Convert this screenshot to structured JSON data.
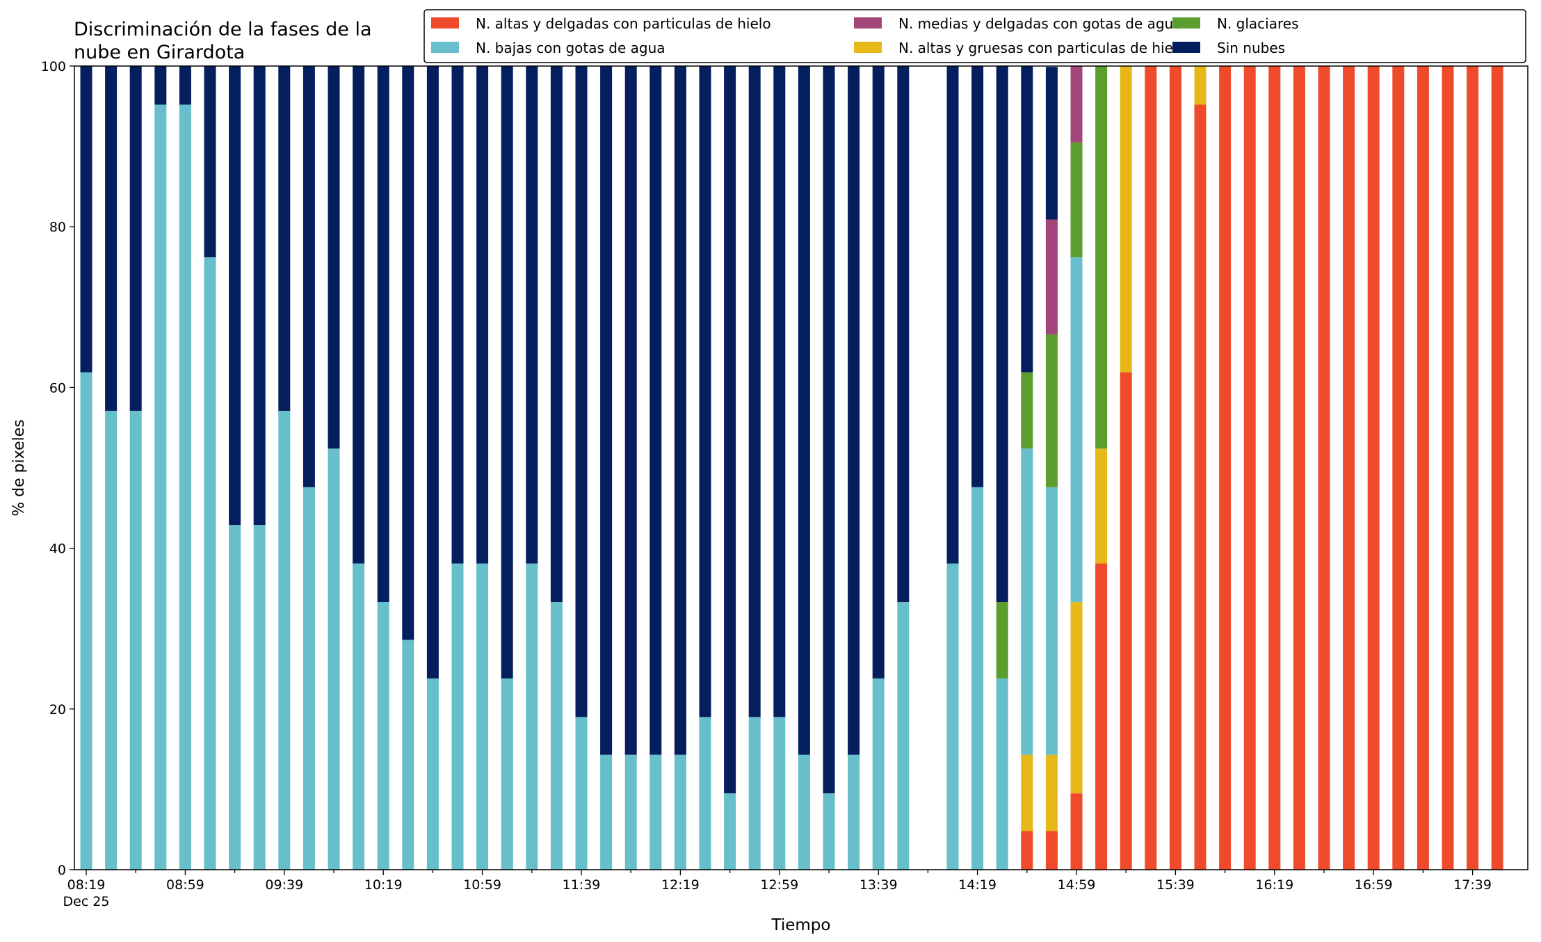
{
  "chart_data": {
    "type": "bar",
    "stacked": true,
    "title_lines": [
      "Discriminación de la fases de la",
      "nube en Girardota"
    ],
    "xlabel": "Tiempo",
    "ylabel": "% de pixeles",
    "ylim": [
      0,
      100
    ],
    "yticks": [
      "0",
      "20",
      "40",
      "60",
      "80",
      "100"
    ],
    "grid": false,
    "legend_position": "top-right",
    "start_time": "08:19",
    "interval_minutes": 10,
    "x_tick_labels": [
      {
        "time": "08:19",
        "sub": "Dec 25"
      },
      {
        "time": "08:59",
        "sub": ""
      },
      {
        "time": "09:39",
        "sub": ""
      },
      {
        "time": "10:19",
        "sub": ""
      },
      {
        "time": "10:59",
        "sub": ""
      },
      {
        "time": "11:39",
        "sub": ""
      },
      {
        "time": "12:19",
        "sub": ""
      },
      {
        "time": "12:59",
        "sub": ""
      },
      {
        "time": "13:39",
        "sub": ""
      },
      {
        "time": "14:19",
        "sub": ""
      },
      {
        "time": "14:59",
        "sub": ""
      },
      {
        "time": "15:39",
        "sub": ""
      },
      {
        "time": "16:19",
        "sub": ""
      },
      {
        "time": "16:59",
        "sub": ""
      },
      {
        "time": "17:39",
        "sub": ""
      }
    ],
    "categories": [
      "08:19",
      "08:29",
      "08:39",
      "08:49",
      "08:59",
      "09:09",
      "09:19",
      "09:29",
      "09:39",
      "09:49",
      "09:59",
      "10:09",
      "10:19",
      "10:29",
      "10:39",
      "10:49",
      "10:59",
      "11:09",
      "11:19",
      "11:29",
      "11:39",
      "11:49",
      "11:59",
      "12:09",
      "12:19",
      "12:29",
      "12:39",
      "12:49",
      "12:59",
      "13:09",
      "13:19",
      "13:29",
      "13:39",
      "13:49",
      "13:59",
      "14:09",
      "14:19",
      "14:29",
      "14:39",
      "14:49",
      "14:59",
      "15:09",
      "15:19",
      "15:29",
      "15:39",
      "15:49",
      "15:59",
      "16:09",
      "16:19",
      "16:29",
      "16:39",
      "16:49",
      "16:59",
      "17:09",
      "17:19",
      "17:29",
      "17:39",
      "17:49"
    ],
    "series": [
      {
        "name": "N. altas y delgadas con particulas de hielo",
        "color": "#ee4a2b",
        "values": [
          0,
          0,
          0,
          0,
          0,
          0,
          0,
          0,
          0,
          0,
          0,
          0,
          0,
          0,
          0,
          0,
          0,
          0,
          0,
          0,
          0,
          0,
          0,
          0,
          0,
          0,
          0,
          0,
          0,
          0,
          0,
          0,
          0,
          0,
          0,
          0,
          0,
          0,
          4.8,
          4.8,
          9.5,
          38.1,
          61.9,
          100,
          100,
          95.2,
          100,
          100,
          100,
          100,
          100,
          100,
          100,
          100,
          100,
          100,
          100,
          100
        ]
      },
      {
        "name": "N. altas y gruesas con particulas de hielo",
        "color": "#e6b81a",
        "values": [
          0,
          0,
          0,
          0,
          0,
          0,
          0,
          0,
          0,
          0,
          0,
          0,
          0,
          0,
          0,
          0,
          0,
          0,
          0,
          0,
          0,
          0,
          0,
          0,
          0,
          0,
          0,
          0,
          0,
          0,
          0,
          0,
          0,
          0,
          0,
          0,
          0,
          0,
          9.5,
          9.5,
          23.8,
          14.3,
          38.1,
          0,
          0,
          4.8,
          0,
          0,
          0,
          0,
          0,
          0,
          0,
          0,
          0,
          0,
          0,
          0
        ]
      },
      {
        "name": "N. bajas con gotas de agua",
        "color": "#66bfca",
        "values": [
          61.9,
          57.1,
          57.1,
          95.2,
          95.2,
          76.2,
          42.9,
          42.9,
          57.1,
          47.6,
          52.4,
          38.1,
          33.3,
          28.6,
          23.8,
          38.1,
          38.1,
          23.8,
          38.1,
          33.3,
          19,
          14.3,
          14.3,
          14.3,
          14.3,
          19,
          9.5,
          19,
          19,
          14.3,
          9.5,
          14.3,
          23.8,
          33.3,
          0,
          38.1,
          47.6,
          23.8,
          38.1,
          33.3,
          42.9,
          0,
          0,
          0,
          0,
          0,
          0,
          0,
          0,
          0,
          0,
          0,
          0,
          0,
          0,
          0,
          0,
          0
        ]
      },
      {
        "name": "N. glaciares",
        "color": "#5c9e2e",
        "values": [
          0,
          0,
          0,
          0,
          0,
          0,
          0,
          0,
          0,
          0,
          0,
          0,
          0,
          0,
          0,
          0,
          0,
          0,
          0,
          0,
          0,
          0,
          0,
          0,
          0,
          0,
          0,
          0,
          0,
          0,
          0,
          0,
          0,
          0,
          0,
          0,
          0,
          9.5,
          9.5,
          19,
          14.3,
          47.6,
          0,
          0,
          0,
          0,
          0,
          0,
          0,
          0,
          0,
          0,
          0,
          0,
          0,
          0,
          0,
          0
        ]
      },
      {
        "name": "N. medias y delgadas con gotas de agua",
        "color": "#a34679",
        "values": [
          0,
          0,
          0,
          0,
          0,
          0,
          0,
          0,
          0,
          0,
          0,
          0,
          0,
          0,
          0,
          0,
          0,
          0,
          0,
          0,
          0,
          0,
          0,
          0,
          0,
          0,
          0,
          0,
          0,
          0,
          0,
          0,
          0,
          0,
          0,
          0,
          0,
          0,
          0,
          14.3,
          9.5,
          0,
          0,
          0,
          0,
          0,
          0,
          0,
          0,
          0,
          0,
          0,
          0,
          0,
          0,
          0,
          0,
          0
        ]
      },
      {
        "name": "Sin nubes",
        "color": "#041e5e",
        "values": [
          38.1,
          42.9,
          42.9,
          4.8,
          4.8,
          23.8,
          57.1,
          57.1,
          42.9,
          52.4,
          47.6,
          61.9,
          66.7,
          71.4,
          76.2,
          61.9,
          61.9,
          76.2,
          61.9,
          66.7,
          81,
          85.7,
          85.7,
          85.7,
          85.7,
          81,
          90.5,
          81,
          81,
          85.7,
          90.5,
          85.7,
          76.2,
          66.7,
          0,
          61.9,
          52.4,
          66.7,
          38.1,
          19,
          0,
          0,
          0,
          0,
          0,
          0,
          0,
          0,
          0,
          0,
          0,
          0,
          0,
          0,
          0,
          0,
          0,
          0
        ]
      }
    ],
    "legend_order": [
      0,
      2,
      4,
      1,
      3,
      5
    ]
  }
}
